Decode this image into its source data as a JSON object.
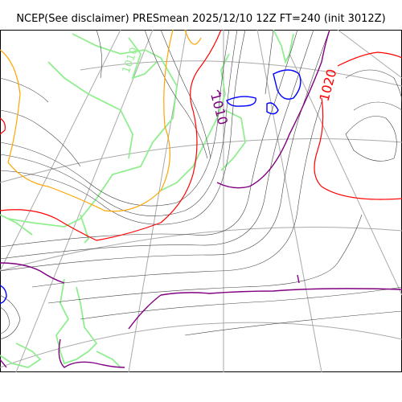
{
  "title": "NCEP(See disclaimer) PRESmean 2025/12/10 12Z FT=240 (init 3012Z)",
  "isobar_labels": {
    "purple": "1010",
    "red_right": "1020",
    "green_top": "1010"
  },
  "colors": {
    "isobar": "#444444",
    "isobar_1010": "#800080",
    "isobar_1020": "#ff0000",
    "isobar_1000": "#ffa500",
    "isobar_low": "#0000ff",
    "coast": "#90ee90",
    "grid": "#aaaaaa"
  }
}
